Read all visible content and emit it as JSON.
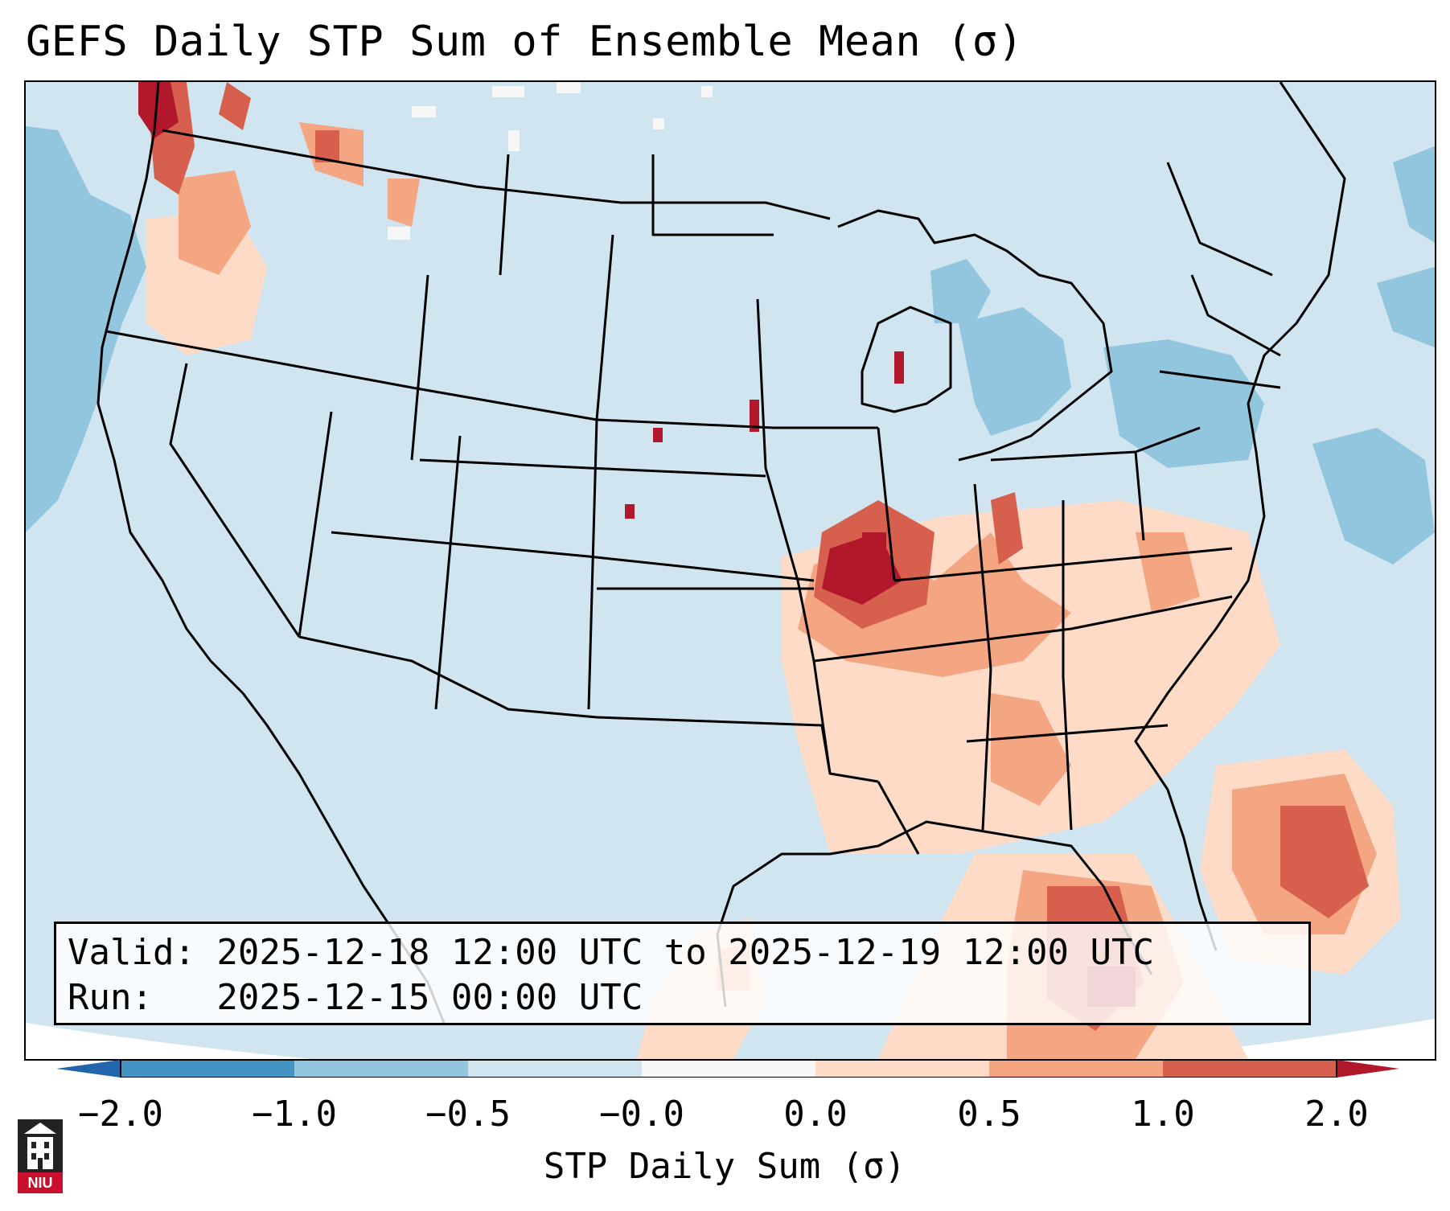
{
  "title": "GEFS Daily STP Sum of Ensemble Mean (σ)",
  "info": {
    "valid_line": "Valid: 2025-12-18 12:00 UTC to 2025-12-19 12:00 UTC",
    "run_line": "Run:   2025-12-15 00:00 UTC"
  },
  "colorbar": {
    "label": "STP Daily Sum (σ)",
    "ticks": [
      "−2.0",
      "−1.0",
      "−0.5",
      "−0.0",
      "0.0",
      "0.5",
      "1.0",
      "2.0"
    ],
    "colors": [
      "#2166ac",
      "#4393c3",
      "#92c5de",
      "#d1e5f0",
      "#f7f7f7",
      "#fddbc7",
      "#f4a582",
      "#d6604d",
      "#b2182b"
    ]
  },
  "logo": {
    "text": "NIU"
  }
}
